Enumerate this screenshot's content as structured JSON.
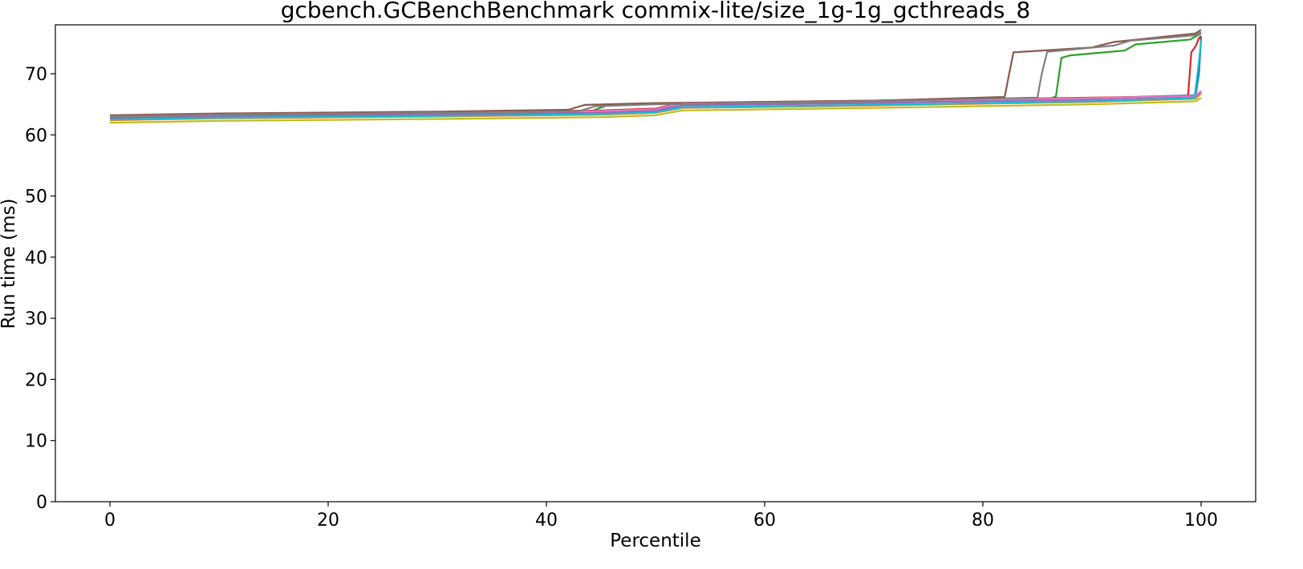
{
  "chart_data": {
    "type": "line",
    "title": "gcbench.GCBenchBenchmark commix-lite/size_1g-1g_gcthreads_8",
    "xlabel": "Percentile",
    "ylabel": "Run time (ms)",
    "xlim": [
      -5,
      105
    ],
    "ylim": [
      0,
      78
    ],
    "xticks": [
      0,
      20,
      40,
      60,
      80,
      100
    ],
    "yticks": [
      0,
      10,
      20,
      30,
      40,
      50,
      60,
      70
    ],
    "grid": false,
    "legend": "none",
    "series": [
      {
        "color": "#1f77b4",
        "points": [
          [
            0,
            62.9
          ],
          [
            10,
            63.2
          ],
          [
            30,
            63.5
          ],
          [
            45,
            63.8
          ],
          [
            50,
            64.1
          ],
          [
            51.5,
            64.8
          ],
          [
            52.5,
            65.1
          ],
          [
            70,
            65.5
          ],
          [
            90,
            66.0
          ],
          [
            99.5,
            66.5
          ],
          [
            99.8,
            70.0
          ],
          [
            100,
            76.0
          ]
        ]
      },
      {
        "color": "#ff7f0e",
        "points": [
          [
            0,
            62.4
          ],
          [
            10,
            62.7
          ],
          [
            30,
            63.0
          ],
          [
            45,
            63.3
          ],
          [
            50,
            63.6
          ],
          [
            51.5,
            64.1
          ],
          [
            52.5,
            64.4
          ],
          [
            70,
            64.8
          ],
          [
            90,
            65.4
          ],
          [
            99.5,
            65.9
          ],
          [
            100,
            66.8
          ]
        ]
      },
      {
        "color": "#2ca02c",
        "points": [
          [
            0,
            62.8
          ],
          [
            10,
            63.1
          ],
          [
            30,
            63.4
          ],
          [
            44,
            63.8
          ],
          [
            45.5,
            64.8
          ],
          [
            50,
            65.1
          ],
          [
            70,
            65.4
          ],
          [
            86,
            65.8
          ],
          [
            86.7,
            66.3
          ],
          [
            87.2,
            72.6
          ],
          [
            88,
            73.0
          ],
          [
            93,
            73.8
          ],
          [
            94,
            74.8
          ],
          [
            99,
            75.6
          ],
          [
            100,
            76.6
          ]
        ]
      },
      {
        "color": "#d62728",
        "points": [
          [
            0,
            63.1
          ],
          [
            10,
            63.4
          ],
          [
            30,
            63.7
          ],
          [
            45,
            64.0
          ],
          [
            50,
            64.3
          ],
          [
            51.5,
            64.9
          ],
          [
            52.5,
            65.2
          ],
          [
            70,
            65.6
          ],
          [
            90,
            66.1
          ],
          [
            98.8,
            66.3
          ],
          [
            99.1,
            73.5
          ],
          [
            99.5,
            74.5
          ],
          [
            99.8,
            75.8
          ],
          [
            100,
            76.2
          ]
        ]
      },
      {
        "color": "#9467bd",
        "points": [
          [
            0,
            62.7
          ],
          [
            10,
            63.0
          ],
          [
            30,
            63.3
          ],
          [
            45,
            63.6
          ],
          [
            50,
            63.9
          ],
          [
            51.5,
            64.5
          ],
          [
            52.5,
            64.8
          ],
          [
            70,
            65.2
          ],
          [
            90,
            65.8
          ],
          [
            99.5,
            66.3
          ],
          [
            100,
            67.0
          ]
        ]
      },
      {
        "color": "#8c564b",
        "points": [
          [
            0,
            63.2
          ],
          [
            10,
            63.5
          ],
          [
            30,
            63.8
          ],
          [
            42,
            64.1
          ],
          [
            43.5,
            64.9
          ],
          [
            50,
            65.2
          ],
          [
            70,
            65.6
          ],
          [
            82,
            66.2
          ],
          [
            82.3,
            69.0
          ],
          [
            82.8,
            73.5
          ],
          [
            90,
            74.3
          ],
          [
            92,
            75.2
          ],
          [
            99.5,
            76.6
          ],
          [
            100,
            77.2
          ]
        ]
      },
      {
        "color": "#e377c2",
        "points": [
          [
            0,
            63.0
          ],
          [
            10,
            63.3
          ],
          [
            30,
            63.6
          ],
          [
            45,
            63.9
          ],
          [
            50,
            64.2
          ],
          [
            51.5,
            64.8
          ],
          [
            52.5,
            65.1
          ],
          [
            70,
            65.5
          ],
          [
            90,
            66.0
          ],
          [
            99.5,
            66.4
          ],
          [
            100,
            67.2
          ]
        ]
      },
      {
        "color": "#7f7f7f",
        "points": [
          [
            0,
            63.0
          ],
          [
            10,
            63.3
          ],
          [
            30,
            63.6
          ],
          [
            43,
            63.9
          ],
          [
            44.5,
            64.7
          ],
          [
            50,
            65.0
          ],
          [
            70,
            65.5
          ],
          [
            85,
            66.1
          ],
          [
            85.4,
            70.0
          ],
          [
            85.9,
            73.6
          ],
          [
            92,
            74.6
          ],
          [
            93.5,
            75.4
          ],
          [
            99.5,
            76.3
          ],
          [
            100,
            76.8
          ]
        ]
      },
      {
        "color": "#bcbd22",
        "points": [
          [
            0,
            62.0
          ],
          [
            10,
            62.3
          ],
          [
            30,
            62.6
          ],
          [
            45,
            62.9
          ],
          [
            50,
            63.2
          ],
          [
            51.5,
            63.7
          ],
          [
            52.5,
            64.0
          ],
          [
            70,
            64.4
          ],
          [
            90,
            65.0
          ],
          [
            99.5,
            65.5
          ],
          [
            100,
            66.0
          ]
        ]
      },
      {
        "color": "#17becf",
        "points": [
          [
            0,
            62.5
          ],
          [
            10,
            62.8
          ],
          [
            30,
            63.1
          ],
          [
            45,
            63.4
          ],
          [
            50,
            63.7
          ],
          [
            51.5,
            64.2
          ],
          [
            52.5,
            64.5
          ],
          [
            70,
            64.9
          ],
          [
            90,
            65.5
          ],
          [
            99.4,
            66.0
          ],
          [
            99.8,
            72.0
          ],
          [
            100,
            75.5
          ]
        ]
      }
    ]
  }
}
